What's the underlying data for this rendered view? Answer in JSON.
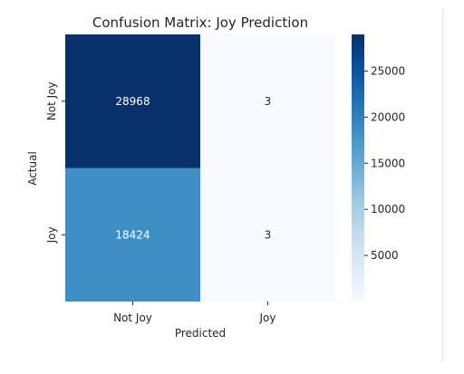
{
  "chart_data": {
    "type": "heatmap",
    "title": "Confusion Matrix: Joy Prediction",
    "xlabel": "Predicted",
    "ylabel": "Actual",
    "x_categories": [
      "Not Joy",
      "Joy"
    ],
    "y_categories": [
      "Not Joy",
      "Joy"
    ],
    "values": [
      [
        28968,
        3
      ],
      [
        18424,
        3
      ]
    ],
    "colormap": "Blues",
    "colorbar": {
      "ticks": [
        5000,
        10000,
        15000,
        20000,
        25000
      ],
      "range": [
        3,
        28968
      ]
    },
    "colors": {
      "low": "#f7fbff",
      "high": "#08306b",
      "annotation_dark_bg": "#ffffff",
      "annotation_light_bg": "#262626"
    }
  }
}
